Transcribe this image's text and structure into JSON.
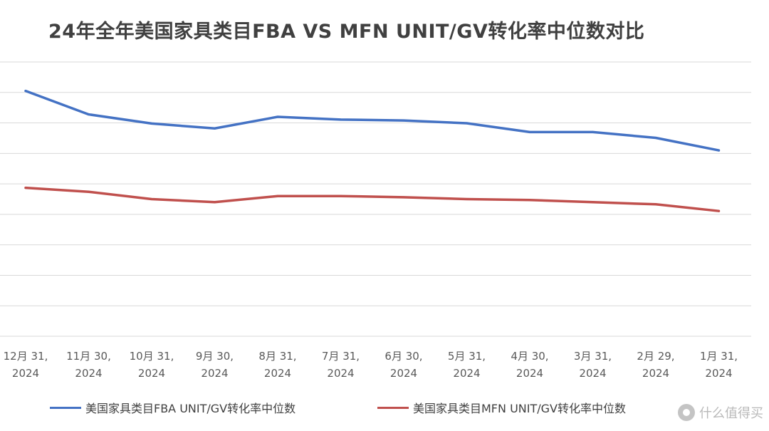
{
  "chart_data": {
    "type": "line",
    "title": "24年全年美国家具类目FBA VS MFN UNIT/GV转化率中位数对比",
    "categories": [
      [
        "12月 31,",
        "2024"
      ],
      [
        "11月 30,",
        "2024"
      ],
      [
        "10月 31,",
        "2024"
      ],
      [
        "9月 30,",
        "2024"
      ],
      [
        "8月 31,",
        "2024"
      ],
      [
        "7月 31,",
        "2024"
      ],
      [
        "6月 30,",
        "2024"
      ],
      [
        "5月 31,",
        "2024"
      ],
      [
        "4月 30,",
        "2024"
      ],
      [
        "3月 31,",
        "2024"
      ],
      [
        "2月 29,",
        "2024"
      ],
      [
        "1月 31,",
        "2024"
      ]
    ],
    "series": [
      {
        "name": "美国家具类目FBA UNIT/GV转化率中位数",
        "color": "#4472C4",
        "values": [
          6.05,
          5.28,
          4.98,
          4.82,
          5.2,
          5.11,
          5.08,
          4.99,
          4.7,
          4.7,
          4.51,
          4.1
        ]
      },
      {
        "name": "美国家具类目MFN UNIT/GV转化率中位数",
        "color": "#C0504D",
        "values": [
          2.87,
          2.74,
          2.5,
          2.4,
          2.6,
          2.6,
          2.56,
          2.5,
          2.47,
          2.4,
          2.33,
          2.11
        ]
      }
    ],
    "ylim": [
      -2,
      7
    ],
    "grid": true,
    "legend_position": "bottom",
    "xlabel": "",
    "ylabel": ""
  },
  "watermark": {
    "icon": "smzdm-logo-icon",
    "text": "什么值得买"
  }
}
